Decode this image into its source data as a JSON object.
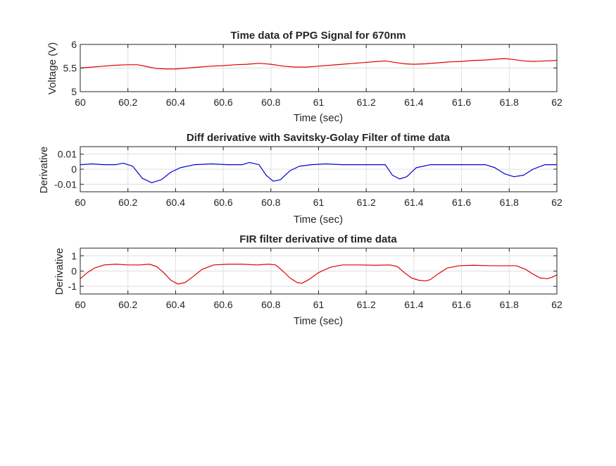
{
  "chart_data": [
    {
      "type": "line",
      "title": "Time data of PPG Signal for 670nm",
      "xlabel": "Time (sec)",
      "ylabel": "Voltage (V)",
      "xlim": [
        60,
        62
      ],
      "ylim": [
        5,
        6
      ],
      "xticks": [
        60,
        60.2,
        60.4,
        60.6,
        60.8,
        61,
        61.2,
        61.4,
        61.6,
        61.8,
        62
      ],
      "xtick_labels": [
        "60",
        "60.2",
        "60.4",
        "60.6",
        "60.8",
        "61",
        "61.2",
        "61.4",
        "61.6",
        "61.8",
        "62"
      ],
      "yticks": [
        5,
        5.5,
        6
      ],
      "ytick_labels": [
        "5",
        "5.5",
        "6"
      ],
      "grid": true,
      "series": [
        {
          "color": "#e00000",
          "x": [
            60.0,
            60.05,
            60.1,
            60.15,
            60.2,
            60.24,
            60.28,
            60.32,
            60.36,
            60.4,
            60.45,
            60.5,
            60.55,
            60.6,
            60.65,
            60.7,
            60.75,
            60.8,
            60.85,
            60.9,
            60.95,
            61.0,
            61.05,
            61.1,
            61.15,
            61.2,
            61.25,
            61.28,
            61.32,
            61.36,
            61.4,
            61.45,
            61.5,
            61.55,
            61.6,
            61.65,
            61.7,
            61.75,
            61.78,
            61.82,
            61.86,
            61.9,
            61.95,
            62.0
          ],
          "y": [
            5.5,
            5.52,
            5.54,
            5.56,
            5.57,
            5.57,
            5.53,
            5.49,
            5.48,
            5.48,
            5.5,
            5.52,
            5.54,
            5.55,
            5.57,
            5.58,
            5.6,
            5.58,
            5.54,
            5.52,
            5.52,
            5.54,
            5.56,
            5.58,
            5.6,
            5.62,
            5.64,
            5.65,
            5.62,
            5.59,
            5.58,
            5.59,
            5.61,
            5.63,
            5.64,
            5.66,
            5.67,
            5.69,
            5.7,
            5.68,
            5.65,
            5.64,
            5.65,
            5.66
          ]
        }
      ]
    },
    {
      "type": "line",
      "title": "Diff derivative with Savitsky-Golay Filter of time data",
      "xlabel": "Time (sec)",
      "ylabel": "Derivative",
      "xlim": [
        60,
        62
      ],
      "ylim": [
        -0.015,
        0.015
      ],
      "xticks": [
        60,
        60.2,
        60.4,
        60.6,
        60.8,
        61,
        61.2,
        61.4,
        61.6,
        61.8,
        62
      ],
      "xtick_labels": [
        "60",
        "60.2",
        "60.4",
        "60.6",
        "60.8",
        "61",
        "61.2",
        "61.4",
        "61.6",
        "61.8",
        "62"
      ],
      "yticks": [
        -0.01,
        0,
        0.01
      ],
      "ytick_labels": [
        "-0.01",
        "0",
        "0.01"
      ],
      "grid": true,
      "series": [
        {
          "color": "#0000cc",
          "x": [
            60.0,
            60.05,
            60.1,
            60.15,
            60.18,
            60.22,
            60.26,
            60.3,
            60.34,
            60.38,
            60.42,
            60.48,
            60.55,
            60.62,
            60.68,
            60.71,
            60.75,
            60.78,
            60.81,
            60.84,
            60.88,
            60.92,
            60.97,
            61.03,
            61.1,
            61.17,
            61.24,
            61.28,
            61.31,
            61.34,
            61.37,
            61.41,
            61.47,
            61.55,
            61.63,
            61.7,
            61.74,
            61.78,
            61.82,
            61.86,
            61.9,
            61.95,
            62.0
          ],
          "y": [
            0.003,
            0.0035,
            0.003,
            0.003,
            0.004,
            0.002,
            -0.006,
            -0.009,
            -0.007,
            -0.002,
            0.001,
            0.003,
            0.0035,
            0.003,
            0.003,
            0.0045,
            0.003,
            -0.004,
            -0.008,
            -0.007,
            -0.001,
            0.002,
            0.003,
            0.0035,
            0.003,
            0.003,
            0.003,
            0.003,
            -0.004,
            -0.0065,
            -0.005,
            0.001,
            0.003,
            0.003,
            0.003,
            0.003,
            0.001,
            -0.003,
            -0.005,
            -0.004,
            0.0,
            0.003,
            0.003
          ]
        }
      ]
    },
    {
      "type": "line",
      "title": "FIR filter derivative of time data",
      "xlabel": "Time (sec)",
      "ylabel": "Derivative",
      "xlim": [
        60,
        62
      ],
      "ylim": [
        -1.5,
        1.5
      ],
      "xticks": [
        60,
        60.2,
        60.4,
        60.6,
        60.8,
        61,
        61.2,
        61.4,
        61.6,
        61.8,
        62
      ],
      "xtick_labels": [
        "60",
        "60.2",
        "60.4",
        "60.6",
        "60.8",
        "61",
        "61.2",
        "61.4",
        "61.6",
        "61.8",
        "62"
      ],
      "yticks": [
        -1,
        0,
        1
      ],
      "ytick_labels": [
        "-1",
        "0",
        "1"
      ],
      "grid": true,
      "series": [
        {
          "color": "#e00000",
          "x": [
            60.0,
            60.03,
            60.06,
            60.1,
            60.15,
            60.2,
            60.25,
            60.29,
            60.32,
            60.35,
            60.38,
            60.41,
            60.44,
            60.47,
            60.51,
            60.56,
            60.62,
            60.68,
            60.74,
            60.79,
            60.82,
            60.85,
            60.88,
            60.91,
            60.93,
            60.96,
            61.0,
            61.05,
            61.1,
            61.17,
            61.24,
            61.3,
            61.33,
            61.36,
            61.39,
            61.42,
            61.45,
            61.47,
            61.5,
            61.54,
            61.59,
            61.65,
            61.72,
            61.78,
            61.83,
            61.87,
            61.9,
            61.93,
            61.96,
            61.98,
            62.0
          ],
          "y": [
            -0.5,
            -0.1,
            0.2,
            0.4,
            0.45,
            0.4,
            0.4,
            0.45,
            0.3,
            -0.1,
            -0.6,
            -0.85,
            -0.75,
            -0.4,
            0.1,
            0.4,
            0.45,
            0.45,
            0.4,
            0.45,
            0.4,
            0.0,
            -0.45,
            -0.75,
            -0.8,
            -0.55,
            -0.1,
            0.25,
            0.4,
            0.4,
            0.38,
            0.4,
            0.3,
            -0.1,
            -0.45,
            -0.6,
            -0.65,
            -0.55,
            -0.2,
            0.2,
            0.35,
            0.38,
            0.35,
            0.35,
            0.35,
            0.1,
            -0.2,
            -0.45,
            -0.5,
            -0.4,
            -0.25
          ]
        }
      ]
    }
  ]
}
